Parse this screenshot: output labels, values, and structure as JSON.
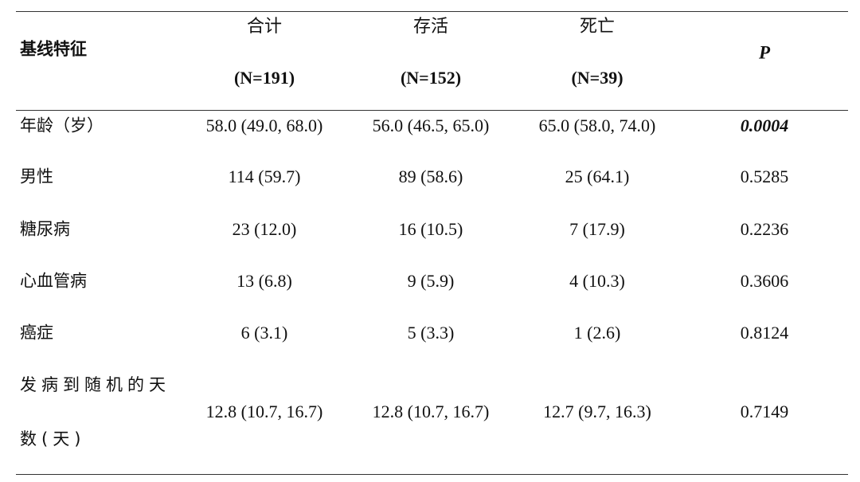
{
  "table": {
    "header": {
      "label": "基线特征",
      "columns": [
        {
          "name": "合计",
          "n": "(N=191)"
        },
        {
          "name": "存活",
          "n": "(N=152)"
        },
        {
          "name": "死亡",
          "n": "(N=39)"
        }
      ],
      "p": "P"
    },
    "rows": [
      [
        "年龄（岁）",
        "58.0 (49.0, 68.0)",
        "56.0 (46.5, 65.0)",
        "65.0 (58.0, 74.0)",
        "0.0004"
      ],
      [
        "男性",
        "114 (59.7)",
        "89 (58.6)",
        "25 (64.1)",
        "0.5285"
      ],
      [
        "糖尿病",
        "23 (12.0)",
        "16 (10.5)",
        "7 (17.9)",
        "0.2236"
      ],
      [
        "心血管病",
        "13 (6.8)",
        "9 (5.9)",
        "4 (10.3)",
        "0.3606"
      ],
      [
        "癌症",
        "6 (3.1)",
        "5 (3.3)",
        "1 (2.6)",
        "0.8124"
      ],
      [
        "发病到随机的天数(天)",
        "12.8 (10.7, 16.7)",
        "12.8 (10.7, 16.7)",
        "12.7 (9.7, 16.3)",
        "0.7149"
      ]
    ]
  }
}
